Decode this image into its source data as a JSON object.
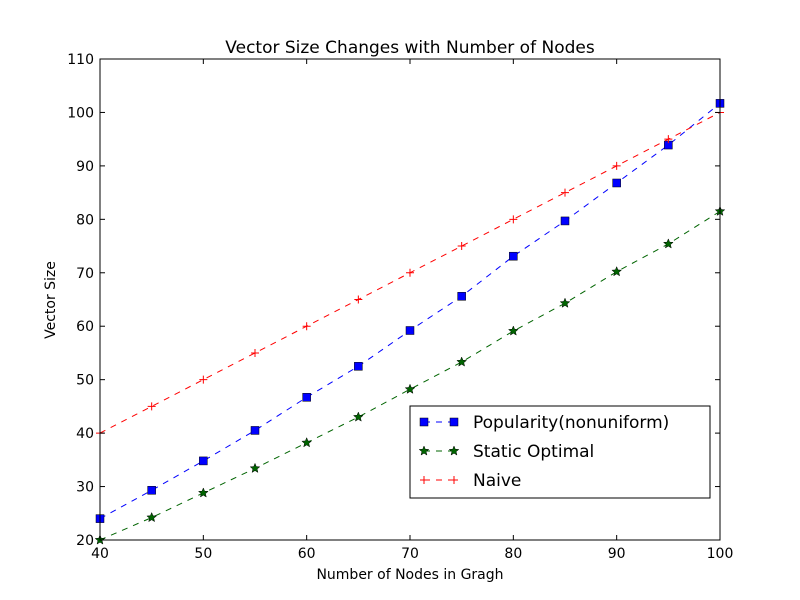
{
  "chart_data": {
    "type": "line",
    "title": "Vector Size Changes with Number of Nodes",
    "xlabel": "Number of Nodes in Gragh",
    "ylabel": "Vector Size",
    "xlim": [
      40,
      100
    ],
    "ylim": [
      20,
      110
    ],
    "xticks": [
      40,
      50,
      60,
      70,
      80,
      90,
      100
    ],
    "yticks": [
      20,
      30,
      40,
      50,
      60,
      70,
      80,
      90,
      100,
      110
    ],
    "grid": false,
    "legend_position": "lower-right",
    "x": [
      40,
      45,
      50,
      55,
      60,
      65,
      70,
      75,
      80,
      85,
      90,
      95,
      100
    ],
    "series": [
      {
        "name": "Popularity(nonuniform)",
        "color": "#0000ff",
        "marker": "square",
        "values": [
          24.0,
          29.3,
          34.8,
          40.5,
          46.7,
          52.5,
          59.2,
          65.6,
          73.1,
          79.7,
          86.8,
          93.9,
          101.7
        ]
      },
      {
        "name": "Static Optimal",
        "color": "#006400",
        "marker": "star",
        "values": [
          20.0,
          24.2,
          28.8,
          33.4,
          38.2,
          43.0,
          48.2,
          53.3,
          59.1,
          64.3,
          70.2,
          75.4,
          81.5
        ]
      },
      {
        "name": "Naive",
        "color": "#ff0000",
        "marker": "plus",
        "values": [
          40,
          45,
          50,
          55,
          60,
          65,
          70,
          75,
          80,
          85,
          90,
          95,
          100
        ]
      }
    ]
  }
}
